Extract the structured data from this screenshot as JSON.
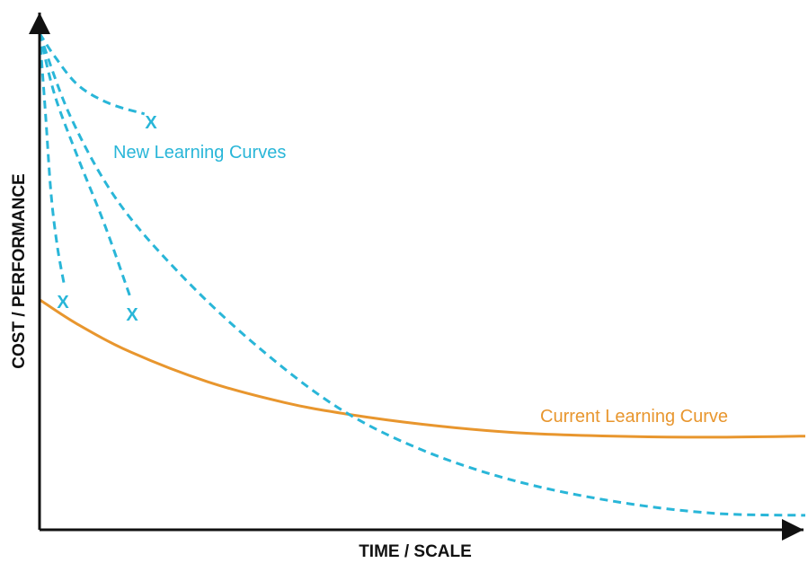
{
  "chart_data": {
    "type": "line",
    "xlabel": "TIME / SCALE",
    "ylabel": "COST / PERFORMANCE",
    "xlim": [
      0,
      100
    ],
    "ylim": [
      0,
      100
    ],
    "grid": false,
    "legend": "none",
    "series": [
      {
        "name": "Current Learning Curve",
        "color": "#E8962E",
        "style": "solid",
        "points": [
          [
            0,
            44.5
          ],
          [
            5,
            39.7
          ],
          [
            12,
            34.3
          ],
          [
            22,
            28.6
          ],
          [
            32,
            24.6
          ],
          [
            40,
            22.4
          ],
          [
            50,
            20.4
          ],
          [
            62,
            18.8
          ],
          [
            75,
            18.1
          ],
          [
            88,
            17.9
          ],
          [
            100,
            18.1
          ]
        ]
      },
      {
        "name": "New Learning Curves",
        "color": "#29B6D8",
        "style": "dashed",
        "lines": [
          {
            "points": [
              [
                0,
                96
              ],
              [
                2,
                91.5
              ],
              [
                5,
                86
              ],
              [
                9,
                82.5
              ],
              [
                13.7,
                80.4
              ]
            ],
            "end_marker": "X"
          },
          {
            "points": [
              [
                0,
                96
              ],
              [
                0.8,
                80
              ],
              [
                1.5,
                65
              ],
              [
                2.3,
                55
              ],
              [
                3.2,
                47.5
              ]
            ],
            "end_marker": "X"
          },
          {
            "points": [
              [
                0,
                96
              ],
              [
                2,
                84
              ],
              [
                5,
                72
              ],
              [
                8.5,
                59
              ],
              [
                11.8,
                45.2
              ]
            ],
            "end_marker": "X"
          },
          {
            "points": [
              [
                0,
                96
              ],
              [
                4,
                80
              ],
              [
                10,
                64
              ],
              [
                18,
                50
              ],
              [
                28,
                36
              ],
              [
                39,
                23.6
              ],
              [
                50,
                15.4
              ],
              [
                62,
                9.5
              ],
              [
                75,
                5.5
              ],
              [
                88,
                3.2
              ],
              [
                100,
                2.8
              ]
            ],
            "end_marker": "none"
          }
        ]
      }
    ],
    "annotations": [
      {
        "text": "New Learning Curves",
        "color": "#29B6D8"
      },
      {
        "text": "Current Learning Curve",
        "color": "#E8962E"
      }
    ],
    "markers": [
      "X",
      "X",
      "X"
    ]
  }
}
